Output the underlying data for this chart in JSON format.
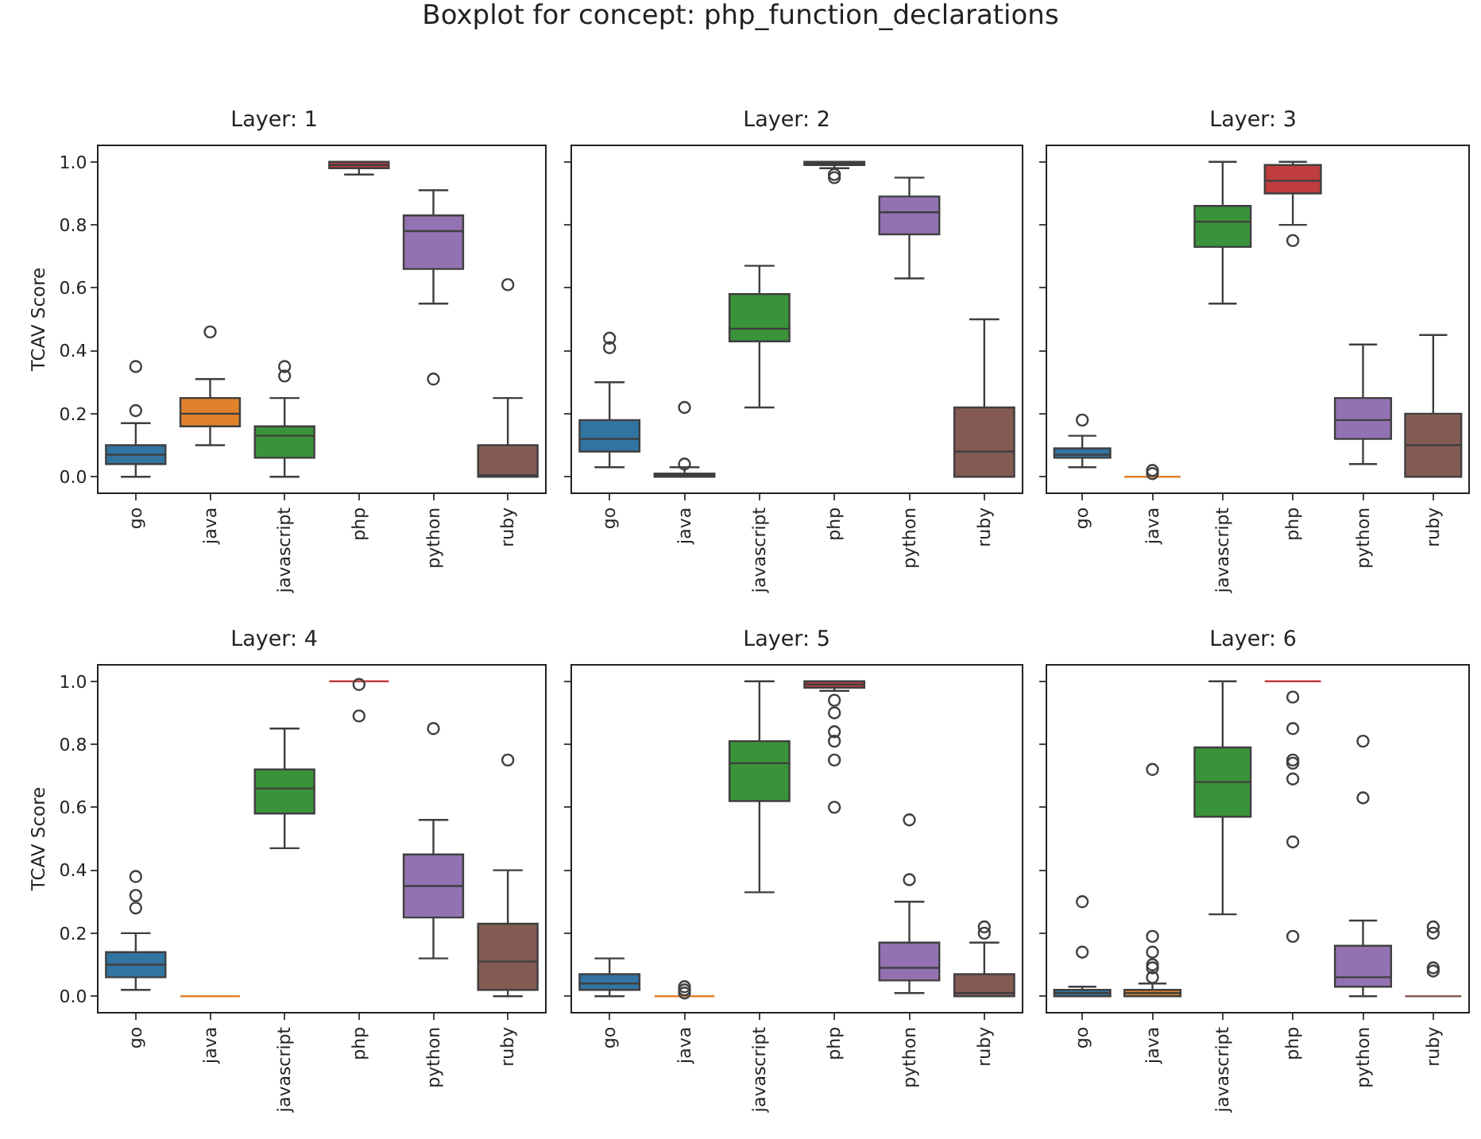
{
  "chart_data": [
    {
      "type": "other",
      "title": "Boxplot for concept: php_function_declarations"
    },
    {
      "type": "box",
      "title": "Layer: 1",
      "ylabel": "TCAV Score",
      "categories": [
        "go",
        "java",
        "javascript",
        "php",
        "python",
        "ruby"
      ],
      "colors": [
        "#3274a1",
        "#e1812c",
        "#3a923a",
        "#c03d3e",
        "#9372b2",
        "#845b53"
      ],
      "ylim": [
        -0.05,
        1.05
      ],
      "yticks": [
        {
          "value": 0,
          "label": "0.0"
        },
        {
          "value": 0.2,
          "label": "0.2"
        },
        {
          "value": 0.4,
          "label": "0.4"
        },
        {
          "value": 0.6,
          "label": "0.6"
        },
        {
          "value": 0.8,
          "label": "0.8"
        },
        {
          "value": 1,
          "label": "1.0"
        }
      ],
      "boxes": [
        {
          "low": 0,
          "q1": 0.04,
          "median": 0.07,
          "q3": 0.1,
          "high": 0.17,
          "outliers": [
            0.21,
            0.35
          ]
        },
        {
          "low": 0.1,
          "q1": 0.16,
          "median": 0.2,
          "q3": 0.25,
          "high": 0.31,
          "outliers": [
            0.46
          ]
        },
        {
          "low": 0,
          "q1": 0.06,
          "median": 0.13,
          "q3": 0.16,
          "high": 0.25,
          "outliers": [
            0.32,
            0.35
          ]
        },
        {
          "low": 0.96,
          "q1": 0.98,
          "median": 0.99,
          "q3": 1,
          "high": 1
        },
        {
          "low": 0.55,
          "q1": 0.66,
          "median": 0.78,
          "q3": 0.83,
          "high": 0.91,
          "outliers": [
            0.31
          ]
        },
        {
          "low": 0,
          "q1": 0,
          "median": 0,
          "q3": 0.1,
          "high": 0.25,
          "outliers": [
            0.61
          ]
        }
      ]
    },
    {
      "type": "box",
      "title": "Layer: 2",
      "categories": [
        "go",
        "java",
        "javascript",
        "php",
        "python",
        "ruby"
      ],
      "colors": [
        "#3274a1",
        "#e1812c",
        "#3a923a",
        "#c03d3e",
        "#9372b2",
        "#845b53"
      ],
      "ylim": [
        -0.05,
        1.05
      ],
      "yticks": [
        {
          "value": 0,
          "label": null
        },
        {
          "value": 0.2,
          "label": null
        },
        {
          "value": 0.4,
          "label": null
        },
        {
          "value": 0.6,
          "label": null
        },
        {
          "value": 0.8,
          "label": null
        },
        {
          "value": 1,
          "label": null
        }
      ],
      "tick_labels": "x",
      "boxes": [
        {
          "low": 0.03,
          "q1": 0.08,
          "median": 0.12,
          "q3": 0.18,
          "high": 0.3,
          "outliers": [
            0.41,
            0.44
          ]
        },
        {
          "low": 0,
          "q1": 0,
          "median": 0.01,
          "q3": 0.01,
          "high": 0.03,
          "outliers": [
            0.04,
            0.22
          ]
        },
        {
          "low": 0.22,
          "q1": 0.43,
          "median": 0.47,
          "q3": 0.58,
          "high": 0.67
        },
        {
          "low": 0.98,
          "q1": 0.99,
          "median": 1,
          "q3": 1,
          "high": 1,
          "outliers": [
            0.95,
            0.96
          ]
        },
        {
          "low": 0.63,
          "q1": 0.77,
          "median": 0.84,
          "q3": 0.89,
          "high": 0.95
        },
        {
          "low": 0,
          "q1": 0,
          "median": 0.08,
          "q3": 0.22,
          "high": 0.5
        }
      ]
    },
    {
      "type": "box",
      "title": "Layer: 3",
      "categories": [
        "go",
        "java",
        "javascript",
        "php",
        "python",
        "ruby"
      ],
      "colors": [
        "#3274a1",
        "#e1812c",
        "#3a923a",
        "#c03d3e",
        "#9372b2",
        "#845b53"
      ],
      "ylim": [
        -0.05,
        1.05
      ],
      "yticks": [
        {
          "value": 0,
          "label": null
        },
        {
          "value": 0.2,
          "label": null
        },
        {
          "value": 0.4,
          "label": null
        },
        {
          "value": 0.6,
          "label": null
        },
        {
          "value": 0.8,
          "label": null
        },
        {
          "value": 1,
          "label": null
        }
      ],
      "tick_labels": "x",
      "boxes": [
        {
          "low": 0.03,
          "q1": 0.06,
          "median": 0.07,
          "q3": 0.09,
          "high": 0.13,
          "outliers": [
            0.18
          ]
        },
        {
          "low": 0,
          "q1": 0,
          "median": 0,
          "q3": 0,
          "high": 0,
          "outliers": [
            0.01,
            0.02
          ]
        },
        {
          "low": 0.55,
          "q1": 0.73,
          "median": 0.81,
          "q3": 0.86,
          "high": 1
        },
        {
          "low": 0.8,
          "q1": 0.9,
          "median": 0.94,
          "q3": 0.99,
          "high": 1,
          "outliers": [
            0.75
          ]
        },
        {
          "low": 0.04,
          "q1": 0.12,
          "median": 0.18,
          "q3": 0.25,
          "high": 0.42
        },
        {
          "low": 0,
          "q1": 0,
          "median": 0.1,
          "q3": 0.2,
          "high": 0.45
        }
      ]
    },
    {
      "type": "box",
      "title": "Layer: 4",
      "ylabel": "TCAV Score",
      "categories": [
        "go",
        "java",
        "javascript",
        "php",
        "python",
        "ruby"
      ],
      "colors": [
        "#3274a1",
        "#e1812c",
        "#3a923a",
        "#c03d3e",
        "#9372b2",
        "#845b53"
      ],
      "ylim": [
        -0.05,
        1.05
      ],
      "yticks": [
        {
          "value": 0,
          "label": "0.0"
        },
        {
          "value": 0.2,
          "label": "0.2"
        },
        {
          "value": 0.4,
          "label": "0.4"
        },
        {
          "value": 0.6,
          "label": "0.6"
        },
        {
          "value": 0.8,
          "label": "0.8"
        },
        {
          "value": 1,
          "label": "1.0"
        }
      ],
      "boxes": [
        {
          "low": 0.02,
          "q1": 0.06,
          "median": 0.1,
          "q3": 0.14,
          "high": 0.2,
          "outliers": [
            0.28,
            0.32,
            0.38
          ]
        },
        {
          "low": 0,
          "q1": 0,
          "median": 0,
          "q3": 0,
          "high": 0
        },
        {
          "low": 0.47,
          "q1": 0.58,
          "median": 0.66,
          "q3": 0.72,
          "high": 0.85
        },
        {
          "low": 1,
          "q1": 1,
          "median": 1,
          "q3": 1,
          "high": 1,
          "outliers": [
            0.89,
            0.99
          ]
        },
        {
          "low": 0.12,
          "q1": 0.25,
          "median": 0.35,
          "q3": 0.45,
          "high": 0.56,
          "outliers": [
            0.85
          ]
        },
        {
          "low": 0,
          "q1": 0.02,
          "median": 0.11,
          "q3": 0.23,
          "high": 0.4,
          "outliers": [
            0.75
          ]
        }
      ]
    },
    {
      "type": "box",
      "title": "Layer: 5",
      "categories": [
        "go",
        "java",
        "javascript",
        "php",
        "python",
        "ruby"
      ],
      "colors": [
        "#3274a1",
        "#e1812c",
        "#3a923a",
        "#c03d3e",
        "#9372b2",
        "#845b53"
      ],
      "ylim": [
        -0.05,
        1.05
      ],
      "yticks": [
        {
          "value": 0,
          "label": null
        },
        {
          "value": 0.2,
          "label": null
        },
        {
          "value": 0.4,
          "label": null
        },
        {
          "value": 0.6,
          "label": null
        },
        {
          "value": 0.8,
          "label": null
        },
        {
          "value": 1,
          "label": null
        }
      ],
      "tick_labels": "x",
      "boxes": [
        {
          "low": 0,
          "q1": 0.02,
          "median": 0.04,
          "q3": 0.07,
          "high": 0.12
        },
        {
          "low": 0,
          "q1": 0,
          "median": 0,
          "q3": 0,
          "high": 0,
          "outliers": [
            0.01,
            0.02,
            0.03
          ]
        },
        {
          "low": 0.33,
          "q1": 0.62,
          "median": 0.74,
          "q3": 0.81,
          "high": 1
        },
        {
          "low": 0.97,
          "q1": 0.98,
          "median": 0.99,
          "q3": 1,
          "high": 1,
          "outliers": [
            0.6,
            0.75,
            0.81,
            0.84,
            0.9,
            0.94
          ]
        },
        {
          "low": 0.01,
          "q1": 0.05,
          "median": 0.09,
          "q3": 0.17,
          "high": 0.3,
          "outliers": [
            0.37,
            0.56
          ]
        },
        {
          "low": 0,
          "q1": 0,
          "median": 0.01,
          "q3": 0.07,
          "high": 0.17,
          "outliers": [
            0.2,
            0.22
          ]
        }
      ]
    },
    {
      "type": "box",
      "title": "Layer: 6",
      "categories": [
        "go",
        "java",
        "javascript",
        "php",
        "python",
        "ruby"
      ],
      "colors": [
        "#3274a1",
        "#e1812c",
        "#3a923a",
        "#c03d3e",
        "#9372b2",
        "#845b53"
      ],
      "ylim": [
        -0.05,
        1.05
      ],
      "yticks": [
        {
          "value": 0,
          "label": null
        },
        {
          "value": 0.2,
          "label": null
        },
        {
          "value": 0.4,
          "label": null
        },
        {
          "value": 0.6,
          "label": null
        },
        {
          "value": 0.8,
          "label": null
        },
        {
          "value": 1,
          "label": null
        }
      ],
      "tick_labels": "x",
      "boxes": [
        {
          "low": 0,
          "q1": 0,
          "median": 0.01,
          "q3": 0.02,
          "high": 0.03,
          "outliers": [
            0.14,
            0.3
          ]
        },
        {
          "low": 0,
          "q1": 0,
          "median": 0.01,
          "q3": 0.02,
          "high": 0.04,
          "outliers": [
            0.06,
            0.09,
            0.1,
            0.14,
            0.19,
            0.72
          ]
        },
        {
          "low": 0.26,
          "q1": 0.57,
          "median": 0.68,
          "q3": 0.79,
          "high": 1
        },
        {
          "low": 1,
          "q1": 1,
          "median": 1,
          "q3": 1,
          "high": 1,
          "outliers": [
            0.19,
            0.49,
            0.69,
            0.74,
            0.75,
            0.85,
            0.95
          ]
        },
        {
          "low": 0,
          "q1": 0.03,
          "median": 0.06,
          "q3": 0.16,
          "high": 0.24,
          "outliers": [
            0.63,
            0.81
          ]
        },
        {
          "low": 0,
          "q1": 0,
          "median": 0,
          "q3": 0,
          "high": 0,
          "outliers": [
            0.08,
            0.09,
            0.2,
            0.22
          ]
        }
      ]
    }
  ]
}
